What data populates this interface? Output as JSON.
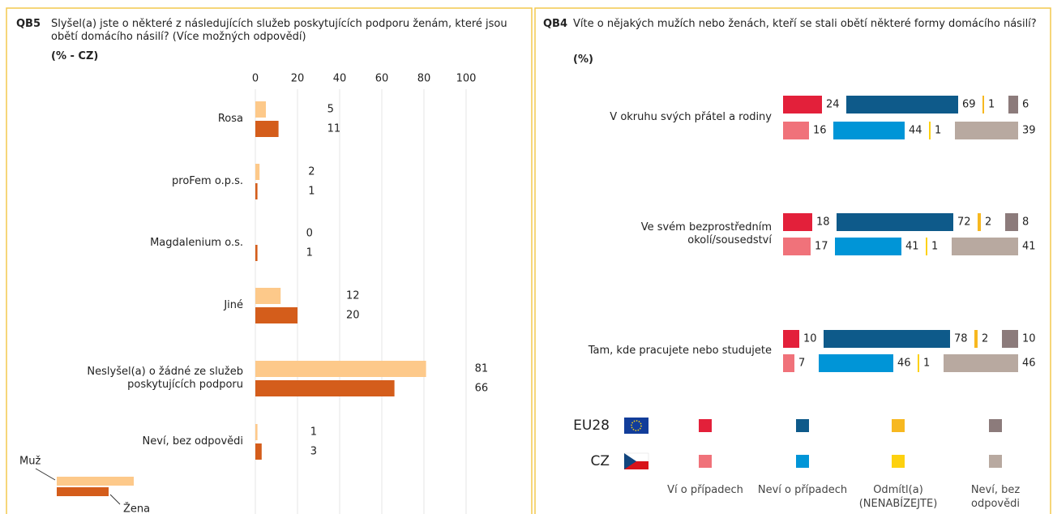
{
  "chart_data": [
    {
      "type": "bar",
      "orientation": "horizontal",
      "code": "QB5",
      "title": "Slyšel(a) jste o některé z následujících služeb poskytujících podporu ženám, které jsou obětí domácího násilí? (Více možných odpovědí)",
      "subtitle": "(% - CZ)",
      "categories": [
        "Rosa",
        "proFem o.p.s.",
        "Magdalenium o.s.",
        "Jiné",
        "Neslyšel(a) o žádné ze služeb poskytujících podporu",
        "Neví, bez odpovědi"
      ],
      "series": [
        {
          "name": "Muž",
          "color": "#fdc98a",
          "values": [
            5,
            2,
            0,
            12,
            81,
            1
          ]
        },
        {
          "name": "Žena",
          "color": "#d45d1b",
          "values": [
            11,
            1,
            1,
            20,
            66,
            3
          ]
        }
      ],
      "xlim": [
        0,
        100
      ],
      "xticks": [
        0,
        20,
        40,
        60,
        80,
        100
      ],
      "grid": true,
      "legend": "bottom-left"
    },
    {
      "type": "segmented",
      "code": "QB4",
      "title": "Víte o nějakých mužích nebo ženách, kteří se stali obětí některé formy domácího násilí?",
      "subtitle": "(%)",
      "categories": [
        "V okruhu svých přátel a rodiny",
        "Ve svém bezprostředním okolí/sousedství",
        "Tam, kde pracujete nebo studujete"
      ],
      "groups": [
        "EU28",
        "CZ"
      ],
      "series": [
        {
          "name": "Ví o případech",
          "colors": [
            "#e3203a",
            "#f0727a"
          ],
          "values": [
            [
              24,
              16
            ],
            [
              18,
              17
            ],
            [
              10,
              7
            ]
          ]
        },
        {
          "name": "Neví o případech",
          "colors": [
            "#0e5a8a",
            "#0095d7"
          ],
          "values": [
            [
              69,
              44
            ],
            [
              72,
              41
            ],
            [
              78,
              46
            ]
          ]
        },
        {
          "name": "Odmítl(a) (NENABÍZEJTE)",
          "colors": [
            "#f7b820",
            "#fdd10f"
          ],
          "values": [
            [
              1,
              1
            ],
            [
              2,
              1
            ],
            [
              2,
              1
            ]
          ]
        },
        {
          "name": "Neví, bez odpovědi",
          "colors": [
            "#8c7b7b",
            "#b8a9a0"
          ],
          "values": [
            [
              6,
              39
            ],
            [
              8,
              41
            ],
            [
              10,
              46
            ]
          ]
        }
      ]
    }
  ]
}
